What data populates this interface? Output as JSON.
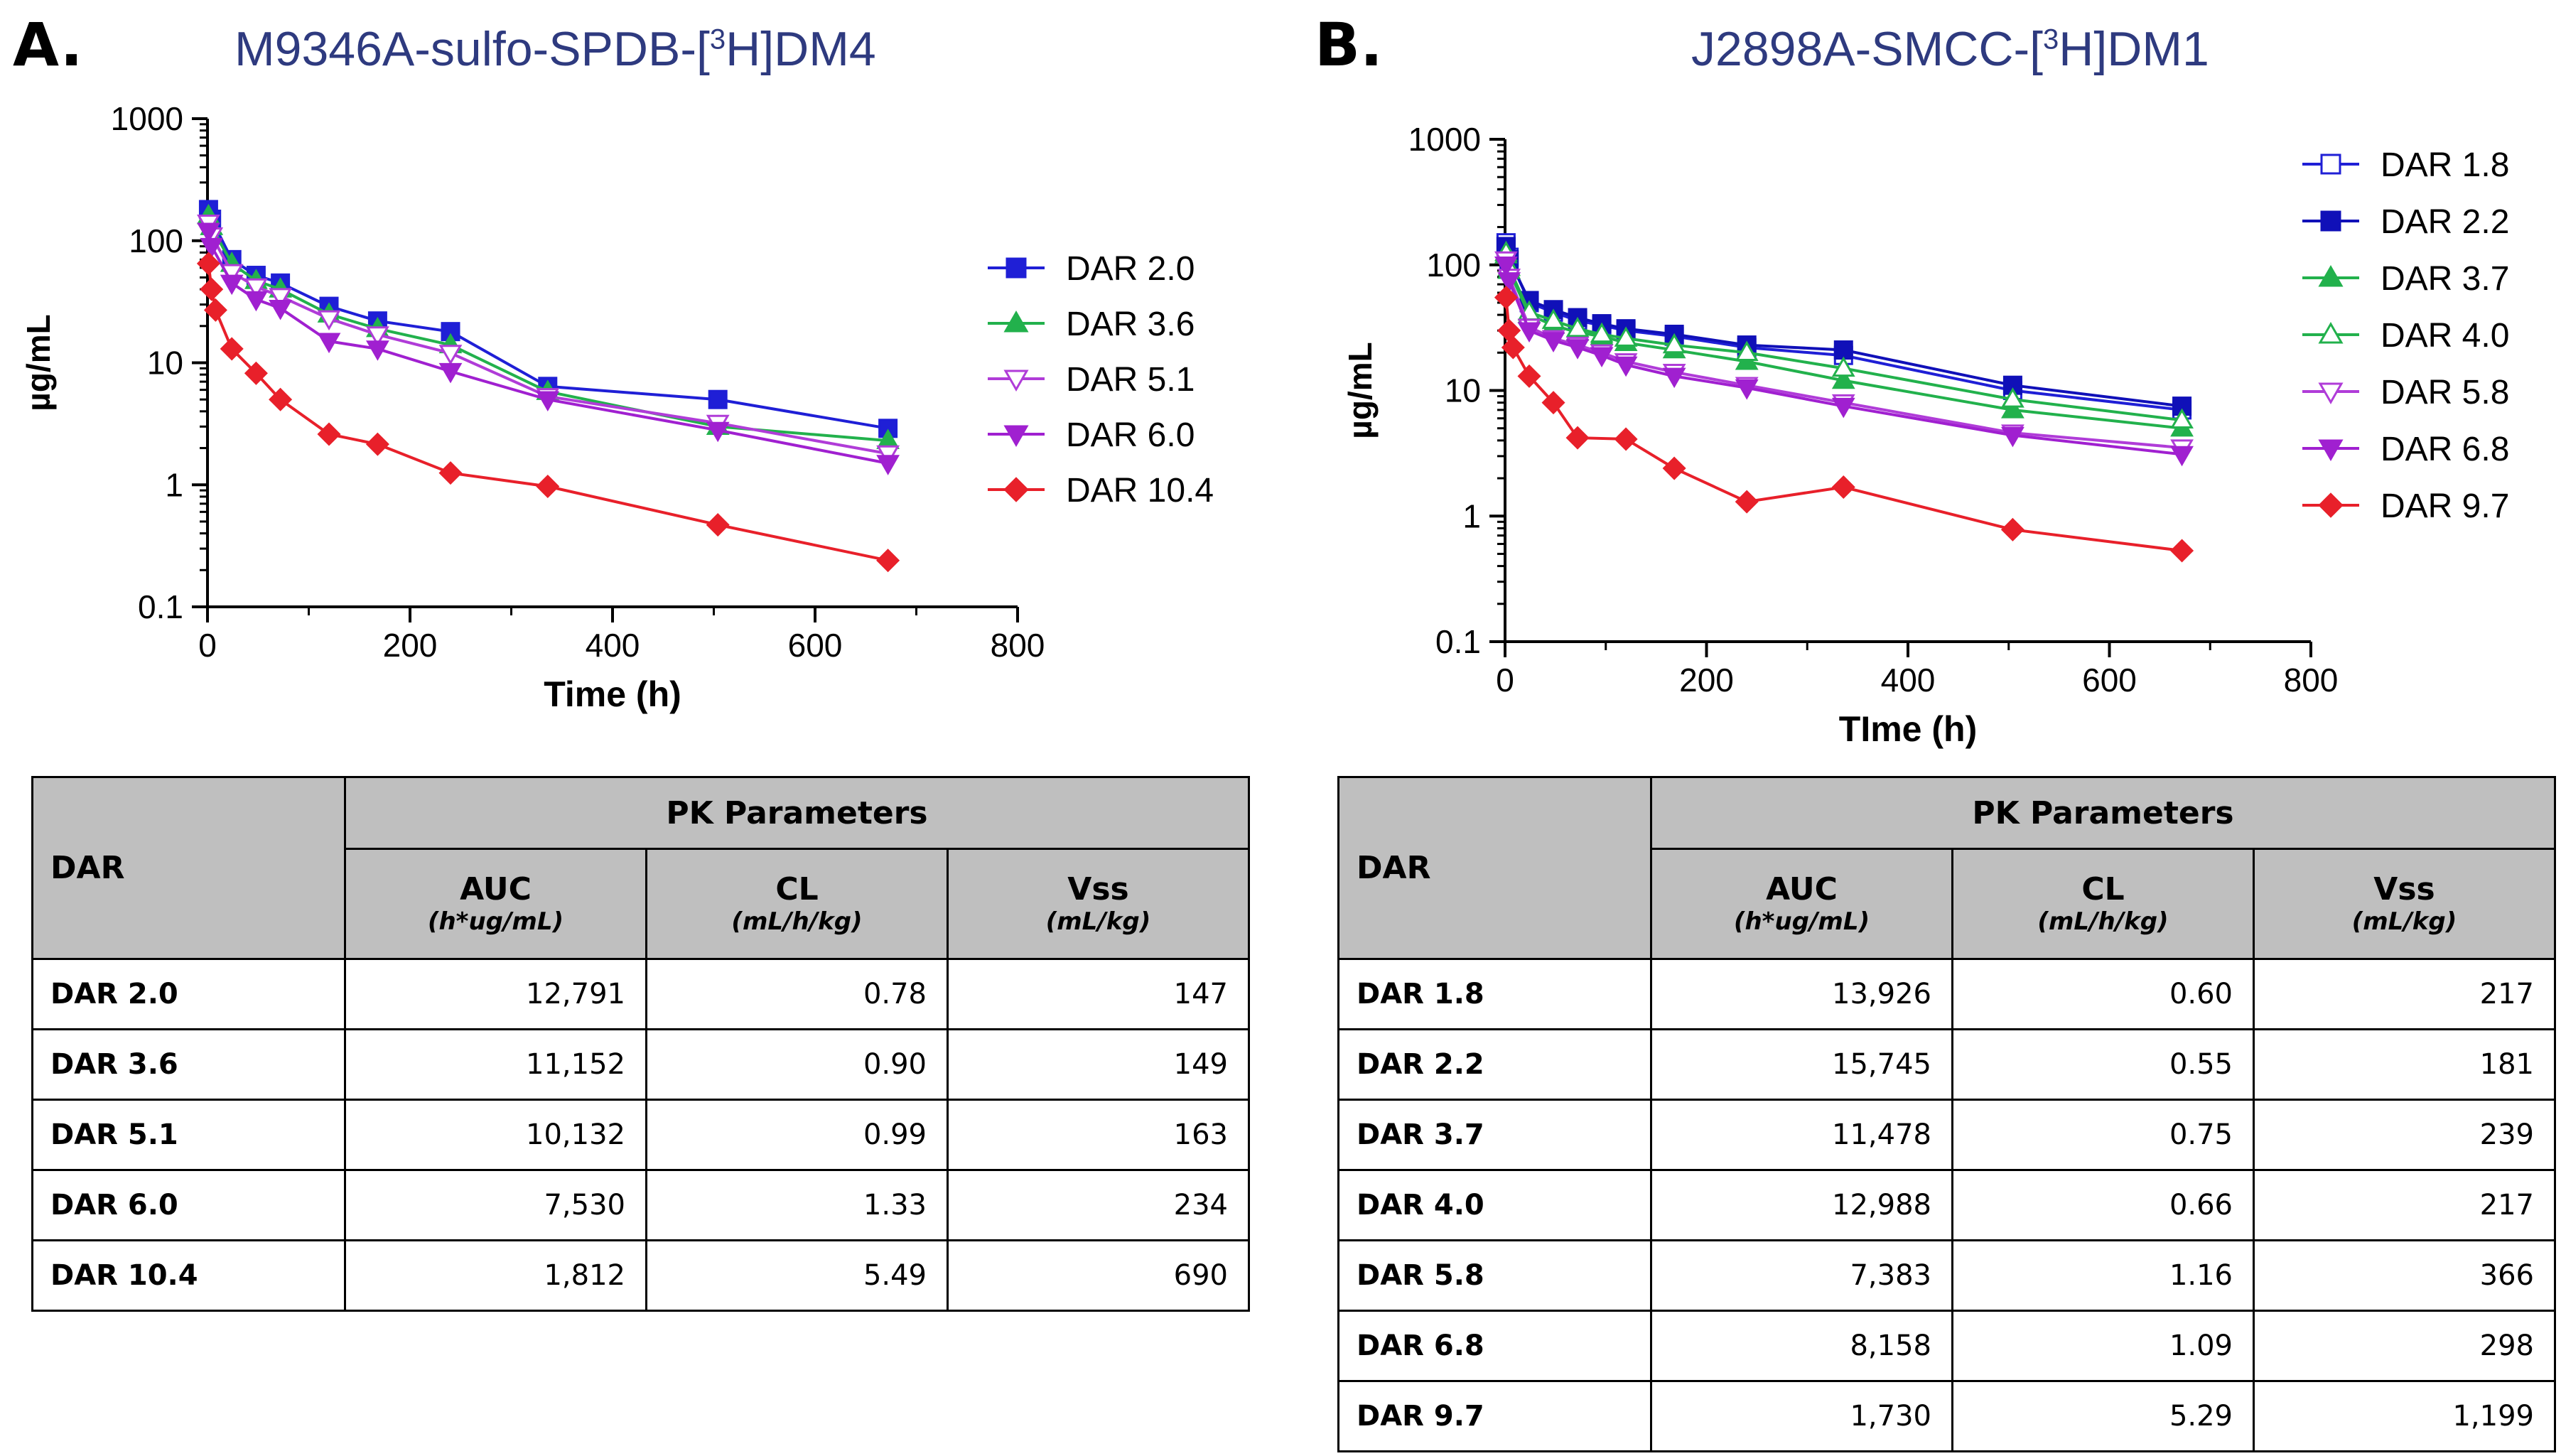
{
  "panels": [
    {
      "letter": "A.",
      "title_prefix": "M9346A-sulfo-SPDB-[",
      "title_sup": "3",
      "title_suffix": "H]DM4"
    },
    {
      "letter": "B.",
      "title_prefix": "J2898A-SMCC-[",
      "title_sup": "3",
      "title_suffix": "H]DM1"
    }
  ],
  "chart_data": [
    {
      "type": "line",
      "title": "M9346A-sulfo-SPDB-[3H]DM4",
      "xlabel": "Time (h)",
      "ylabel": "µg/mL",
      "xlim": [
        0,
        800
      ],
      "ylim": [
        0.1,
        1000
      ],
      "yscale": "log",
      "xticks": [
        0,
        200,
        400,
        600,
        800
      ],
      "yticks": [
        0.1,
        1,
        10,
        100,
        1000
      ],
      "ytick_labels": [
        "0.1",
        "1",
        "10",
        "100",
        "1000"
      ],
      "legend_position": "right",
      "series": [
        {
          "name": "DAR 2.0",
          "color": "#1f1fd6",
          "marker": "square-filled",
          "x": [
            1,
            4,
            24,
            48,
            72,
            120,
            168,
            240,
            336,
            504,
            672
          ],
          "y": [
            180,
            150,
            70,
            52,
            45,
            29,
            22,
            18,
            6.4,
            5.0,
            2.9
          ]
        },
        {
          "name": "DAR 3.6",
          "color": "#22b14c",
          "marker": "triangle-up-filled",
          "x": [
            1,
            4,
            24,
            48,
            72,
            120,
            168,
            240,
            336,
            504,
            672
          ],
          "y": [
            160,
            130,
            65,
            47,
            40,
            25,
            19,
            14,
            5.8,
            3.0,
            2.3
          ]
        },
        {
          "name": "DAR 5.1",
          "color": "#b03cd8",
          "marker": "triangle-down-open",
          "x": [
            1,
            4,
            24,
            48,
            72,
            120,
            168,
            240,
            336,
            504,
            672
          ],
          "y": [
            140,
            110,
            55,
            42,
            35,
            23,
            17,
            12,
            5.3,
            3.2,
            1.8
          ]
        },
        {
          "name": "DAR 6.0",
          "color": "#a020d0",
          "marker": "triangle-down-filled",
          "x": [
            1,
            4,
            24,
            48,
            72,
            120,
            168,
            240,
            336,
            504,
            672
          ],
          "y": [
            120,
            90,
            45,
            33,
            28,
            15,
            13,
            8.5,
            5.0,
            2.8,
            1.5
          ]
        },
        {
          "name": "DAR 10.4",
          "color": "#e8202a",
          "marker": "diamond-filled",
          "x": [
            1,
            4,
            8,
            24,
            48,
            72,
            120,
            168,
            240,
            336,
            504,
            672
          ],
          "y": [
            65,
            40,
            27,
            13,
            8.2,
            5.0,
            2.6,
            2.15,
            1.25,
            0.97,
            0.47,
            0.24
          ]
        }
      ]
    },
    {
      "type": "line",
      "title": "J2898A-SMCC-[3H]DM1",
      "xlabel": "TIme (h)",
      "ylabel": "µg/mL",
      "xlim": [
        0,
        800
      ],
      "ylim": [
        0.1,
        1000
      ],
      "yscale": "log",
      "xticks": [
        0,
        200,
        400,
        600,
        800
      ],
      "yticks": [
        0.1,
        1,
        10,
        100,
        1000
      ],
      "ytick_labels": [
        "0.1",
        "1",
        "10",
        "100",
        "1000"
      ],
      "legend_position": "right",
      "series": [
        {
          "name": "DAR 1.8",
          "color": "#1f1fd6",
          "marker": "square-open",
          "x": [
            1,
            4,
            24,
            48,
            72,
            96,
            120,
            168,
            240,
            336,
            504,
            672
          ],
          "y": [
            150,
            115,
            50,
            42,
            36,
            33,
            30,
            27,
            22,
            19,
            10,
            7.0
          ]
        },
        {
          "name": "DAR 2.2",
          "color": "#1010b8",
          "marker": "square-filled",
          "x": [
            1,
            4,
            24,
            48,
            72,
            96,
            120,
            168,
            240,
            336,
            504,
            672
          ],
          "y": [
            140,
            110,
            52,
            44,
            38,
            34,
            31,
            28,
            23,
            21,
            11,
            7.5
          ]
        },
        {
          "name": "DAR 3.7",
          "color": "#22b14c",
          "marker": "triangle-up-filled",
          "x": [
            1,
            4,
            24,
            48,
            72,
            96,
            120,
            168,
            240,
            336,
            504,
            672
          ],
          "y": [
            120,
            90,
            40,
            33,
            29,
            27,
            24,
            21,
            17,
            12,
            7.0,
            5.0
          ]
        },
        {
          "name": "DAR 4.0",
          "color": "#22b14c",
          "marker": "triangle-up-open",
          "x": [
            1,
            4,
            24,
            48,
            72,
            96,
            120,
            168,
            240,
            336,
            504,
            672
          ],
          "y": [
            125,
            95,
            42,
            36,
            31,
            28,
            26,
            23,
            20,
            15,
            8.5,
            5.8
          ]
        },
        {
          "name": "DAR 5.8",
          "color": "#b03cd8",
          "marker": "triangle-down-open",
          "x": [
            1,
            4,
            24,
            48,
            72,
            96,
            120,
            168,
            240,
            336,
            504,
            672
          ],
          "y": [
            110,
            80,
            32,
            26,
            23,
            20,
            17,
            14,
            11,
            8.0,
            4.6,
            3.5
          ]
        },
        {
          "name": "DAR 6.8",
          "color": "#a020d0",
          "marker": "triangle-down-filled",
          "x": [
            1,
            4,
            24,
            48,
            72,
            96,
            120,
            168,
            240,
            336,
            504,
            672
          ],
          "y": [
            100,
            75,
            30,
            25,
            22,
            19,
            16,
            13,
            10.5,
            7.5,
            4.4,
            3.1
          ]
        },
        {
          "name": "DAR 9.7",
          "color": "#e8202a",
          "marker": "diamond-filled",
          "x": [
            1,
            4,
            8,
            24,
            48,
            72,
            120,
            168,
            240,
            336,
            504,
            672
          ],
          "y": [
            55,
            30,
            22,
            13,
            8.0,
            4.2,
            4.1,
            2.4,
            1.3,
            1.7,
            0.78,
            0.53
          ]
        }
      ]
    }
  ],
  "tables": [
    {
      "corner_label": "DAR",
      "group_label": "PK Parameters",
      "columns": [
        {
          "label": "AUC",
          "unit": "(h*ug/mL)"
        },
        {
          "label": "CL",
          "unit": "(mL/h/kg)"
        },
        {
          "label": "Vss",
          "unit": "(mL/kg)"
        }
      ],
      "rows": [
        {
          "dar": "DAR 2.0",
          "values": [
            "12,791",
            "0.78",
            "147"
          ]
        },
        {
          "dar": "DAR 3.6",
          "values": [
            "11,152",
            "0.90",
            "149"
          ]
        },
        {
          "dar": "DAR 5.1",
          "values": [
            "10,132",
            "0.99",
            "163"
          ]
        },
        {
          "dar": "DAR 6.0",
          "values": [
            "7,530",
            "1.33",
            "234"
          ]
        },
        {
          "dar": "DAR 10.4",
          "values": [
            "1,812",
            "5.49",
            "690"
          ]
        }
      ]
    },
    {
      "corner_label": "DAR",
      "group_label": "PK Parameters",
      "columns": [
        {
          "label": "AUC",
          "unit": "(h*ug/mL)"
        },
        {
          "label": "CL",
          "unit": "(mL/h/kg)"
        },
        {
          "label": "Vss",
          "unit": "(mL/kg)"
        }
      ],
      "rows": [
        {
          "dar": "DAR 1.8",
          "values": [
            "13,926",
            "0.60",
            "217"
          ]
        },
        {
          "dar": "DAR 2.2",
          "values": [
            "15,745",
            "0.55",
            "181"
          ]
        },
        {
          "dar": "DAR 3.7",
          "values": [
            "11,478",
            "0.75",
            "239"
          ]
        },
        {
          "dar": "DAR 4.0",
          "values": [
            "12,988",
            "0.66",
            "217"
          ]
        },
        {
          "dar": "DAR 5.8",
          "values": [
            "7,383",
            "1.16",
            "366"
          ]
        },
        {
          "dar": "DAR 6.8",
          "values": [
            "8,158",
            "1.09",
            "298"
          ]
        },
        {
          "dar": "DAR 9.7",
          "values": [
            "1,730",
            "5.29",
            "1,199"
          ]
        }
      ]
    }
  ]
}
